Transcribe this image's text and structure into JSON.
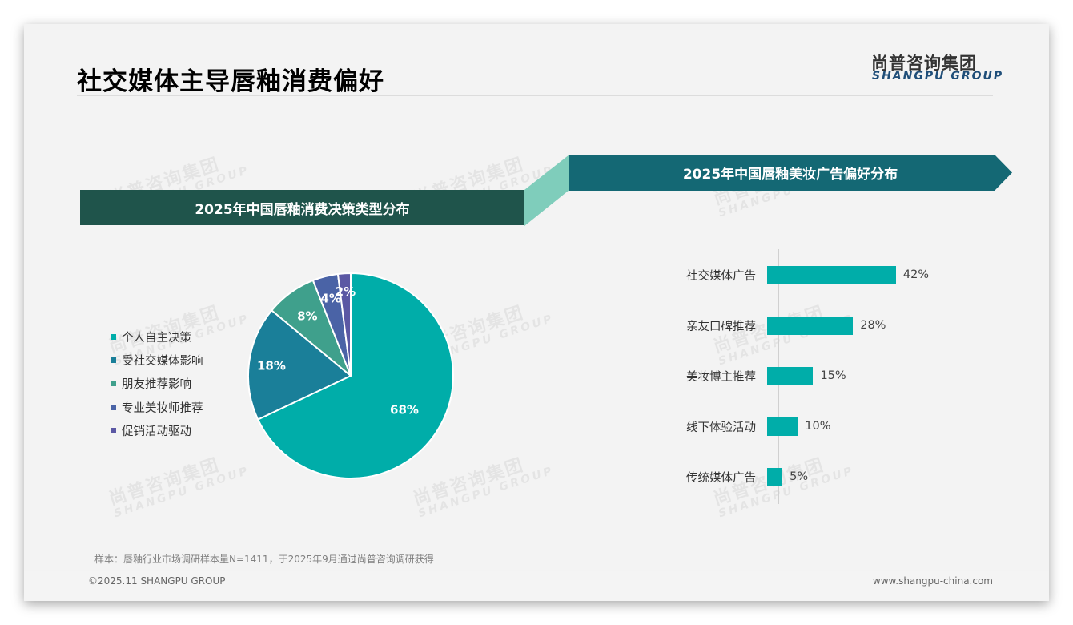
{
  "header": {
    "title": "社交媒体主导唇釉消费偏好",
    "logo_cn": "尚普咨询集团",
    "logo_en": "SHANGPU GROUP"
  },
  "watermark": {
    "cn": "尚普咨询集团",
    "en": "SHANGPU GROUP"
  },
  "left_panel": {
    "banner": "2025年中国唇釉消费决策类型分布"
  },
  "right_panel": {
    "banner": "2025年中国唇釉美妆广告偏好分布"
  },
  "colors": {
    "banner_left": "#1f544b",
    "banner_right": "#146874",
    "connector": "#7fcdbb",
    "bar": "#00ada9"
  },
  "chart_data": [
    {
      "type": "pie",
      "title": "2025年中国唇釉消费决策类型分布",
      "categories": [
        "个人自主决策",
        "受社交媒体影响",
        "朋友推荐影响",
        "专业美妆师推荐",
        "促销活动驱动"
      ],
      "values": [
        68,
        18,
        8,
        4,
        2
      ],
      "labels": [
        "68%",
        "18%",
        "8%",
        "4%",
        "2%"
      ],
      "colors": [
        "#00ada9",
        "#1a7f99",
        "#3fa08c",
        "#4a63a6",
        "#5b58a4"
      ],
      "legend_position": "left",
      "start_angle": "12 o'clock, clockwise"
    },
    {
      "type": "bar",
      "orientation": "horizontal",
      "title": "2025年中国唇釉美妆广告偏好分布",
      "categories": [
        "社交媒体广告",
        "亲友口碑推荐",
        "美妆博主推荐",
        "线下体验活动",
        "传统媒体广告"
      ],
      "values": [
        42,
        28,
        15,
        10,
        5
      ],
      "labels": [
        "42%",
        "28%",
        "15%",
        "10%",
        "5%"
      ],
      "xlabel": "",
      "ylabel": "",
      "grid": false,
      "color": "#00ada9"
    }
  ],
  "footer": {
    "note": "样本：唇釉行业市场调研样本量N=1411，于2025年9月通过尚普咨询调研获得",
    "copyright": "©2025.11 SHANGPU GROUP",
    "website": "www.shangpu-china.com"
  }
}
